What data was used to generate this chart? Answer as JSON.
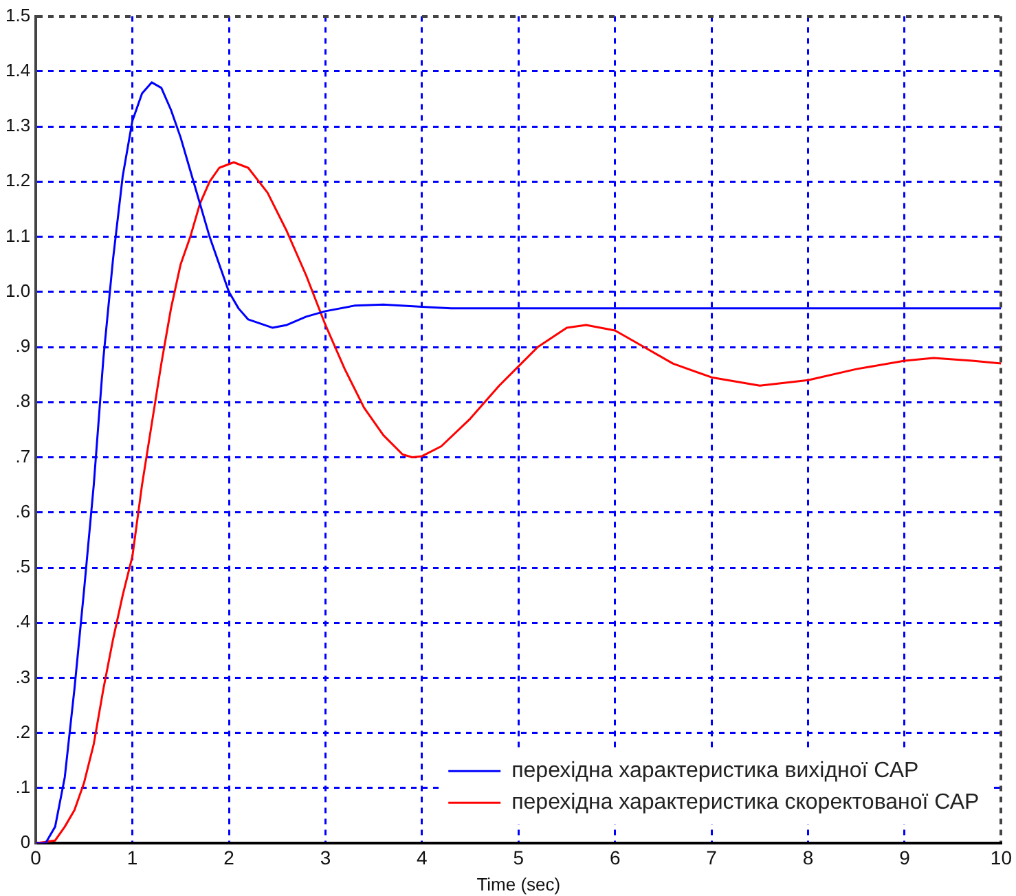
{
  "chart_data": {
    "type": "line",
    "xlabel": "Time (sec)",
    "xlim": [
      0,
      10
    ],
    "xticks": [
      0,
      1,
      2,
      3,
      4,
      5,
      6,
      7,
      8,
      9,
      10
    ],
    "ylim": [
      0,
      1.5
    ],
    "yticks": [
      0,
      {
        "value": 0.1,
        "label": ".1"
      },
      {
        "value": 0.2,
        "label": ".2"
      },
      {
        "value": 0.3,
        "label": ".3"
      },
      {
        "value": 0.4,
        "label": ".4"
      },
      {
        "value": 0.5,
        "label": ".5"
      },
      {
        "value": 0.6,
        "label": ".6"
      },
      {
        "value": 0.7,
        "label": ".7"
      },
      {
        "value": 0.8,
        "label": ".8"
      },
      {
        "value": 0.9,
        "label": ".9"
      },
      {
        "value": 1.0,
        "label": "1.0"
      },
      {
        "value": 1.1,
        "label": "1.1"
      },
      {
        "value": 1.2,
        "label": "1.2"
      },
      {
        "value": 1.3,
        "label": "1.3"
      },
      {
        "value": 1.4,
        "label": "1.4"
      },
      {
        "value": 1.5,
        "label": "1.5"
      }
    ],
    "grid": true,
    "legend": "bottom right",
    "marker": "none",
    "line_style": "solid",
    "series": [
      {
        "name": "перехідна характеристика вихідної САР",
        "color": "#0000ff",
        "x": [
          0,
          0.1,
          0.2,
          0.3,
          0.4,
          0.5,
          0.6,
          0.7,
          0.8,
          0.9,
          1.0,
          1.1,
          1.2,
          1.3,
          1.4,
          1.5,
          1.6,
          1.7,
          1.8,
          1.9,
          2.0,
          2.1,
          2.2,
          2.45,
          2.6,
          2.8,
          3.0,
          3.3,
          3.6,
          4.0,
          4.3,
          10
        ],
        "values": [
          0,
          0,
          0.03,
          0.12,
          0.28,
          0.46,
          0.65,
          0.88,
          1.06,
          1.21,
          1.31,
          1.36,
          1.38,
          1.37,
          1.33,
          1.28,
          1.22,
          1.16,
          1.1,
          1.05,
          1.0,
          0.97,
          0.95,
          0.935,
          0.94,
          0.955,
          0.965,
          0.975,
          0.977,
          0.973,
          0.97,
          0.97
        ]
      },
      {
        "name": "перехідна характеристика скоректованої САР",
        "color": "#ff0000",
        "x": [
          0,
          0.2,
          0.3,
          0.4,
          0.5,
          0.6,
          0.7,
          0.8,
          0.9,
          1.0,
          1.1,
          1.2,
          1.3,
          1.4,
          1.5,
          1.6,
          1.7,
          1.8,
          1.9,
          2.05,
          2.2,
          2.4,
          2.6,
          2.8,
          3.0,
          3.2,
          3.4,
          3.6,
          3.8,
          3.9,
          4.0,
          4.2,
          4.5,
          4.8,
          5.0,
          5.2,
          5.5,
          5.7,
          6.0,
          6.3,
          6.6,
          7.0,
          7.5,
          8.0,
          8.5,
          9.0,
          9.3,
          9.7,
          10
        ],
        "values": [
          0,
          0.005,
          0.03,
          0.06,
          0.11,
          0.18,
          0.28,
          0.37,
          0.45,
          0.52,
          0.65,
          0.76,
          0.87,
          0.97,
          1.05,
          1.1,
          1.16,
          1.2,
          1.225,
          1.235,
          1.225,
          1.18,
          1.11,
          1.03,
          0.94,
          0.86,
          0.79,
          0.74,
          0.705,
          0.7,
          0.702,
          0.72,
          0.77,
          0.83,
          0.865,
          0.9,
          0.935,
          0.94,
          0.93,
          0.9,
          0.87,
          0.845,
          0.83,
          0.84,
          0.86,
          0.875,
          0.88,
          0.875,
          0.87
        ]
      }
    ]
  }
}
